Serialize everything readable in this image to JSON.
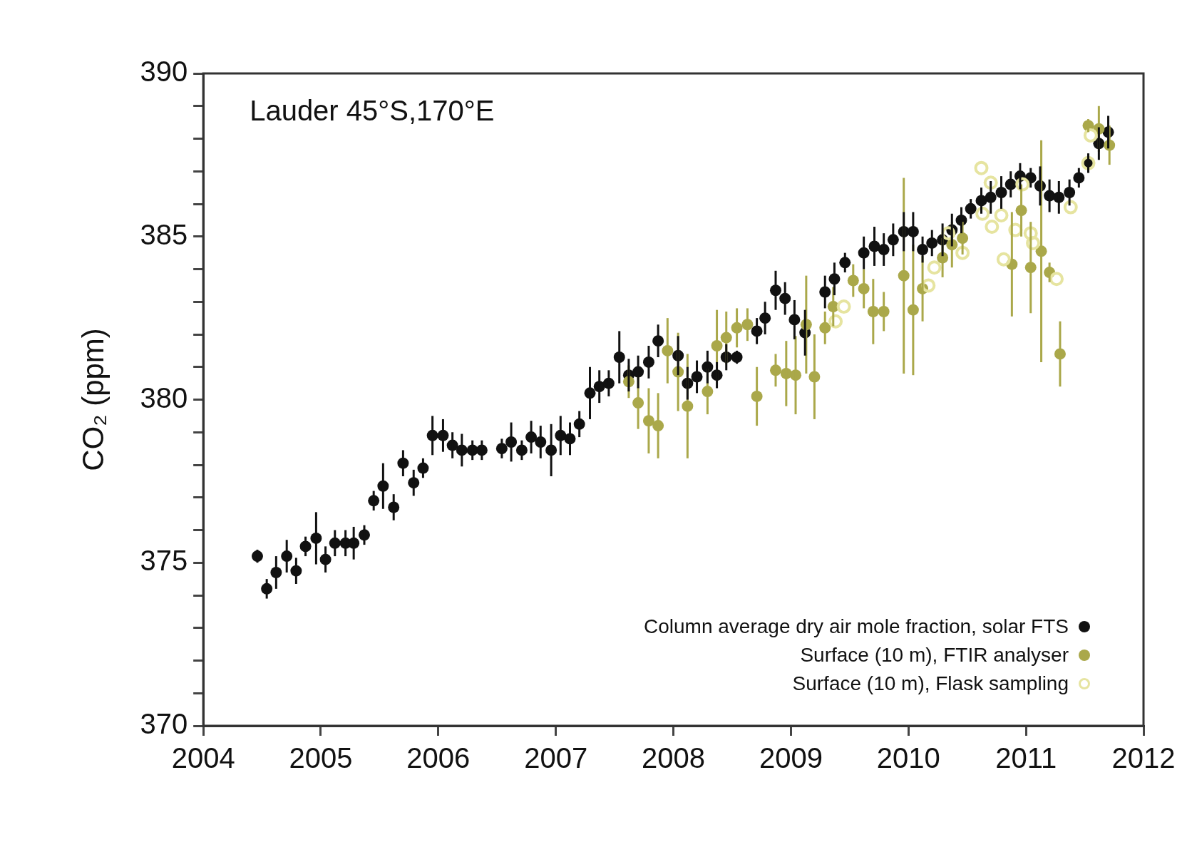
{
  "chart_data": {
    "type": "scatter",
    "ylabel": "CO₂ (ppm)",
    "annotations": [
      "Lauder 45°S,170°E"
    ],
    "xlim": [
      2004,
      2012
    ],
    "xticks": [
      2004,
      2005,
      2006,
      2007,
      2008,
      2009,
      2010,
      2011,
      2012
    ],
    "ylim": [
      370,
      390
    ],
    "yticks": [
      370,
      {
        "value": 371,
        "label": null
      },
      {
        "value": 372,
        "label": null
      },
      {
        "value": 373,
        "label": null
      },
      {
        "value": 374,
        "label": null
      },
      375,
      {
        "value": 376,
        "label": null
      },
      {
        "value": 377,
        "label": null
      },
      {
        "value": 378,
        "label": null
      },
      {
        "value": 379,
        "label": null
      },
      380,
      {
        "value": 381,
        "label": null
      },
      {
        "value": 382,
        "label": null
      },
      {
        "value": 383,
        "label": null
      },
      {
        "value": 384,
        "label": null
      },
      385,
      {
        "value": 386,
        "label": null
      },
      {
        "value": 387,
        "label": null
      },
      {
        "value": 388,
        "label": null
      },
      {
        "value": 389,
        "label": null
      },
      390
    ],
    "grid": false,
    "legend": "bottom right",
    "marker": "circle",
    "series": [
      {
        "name": "Column average dry air mole fraction, solar FTS",
        "color": "#111111",
        "x": [
          2004.46,
          2004.54,
          2004.62,
          2004.71,
          2004.79,
          2004.87,
          2004.96,
          2005.04,
          2005.12,
          2005.21,
          2005.28,
          2005.37,
          2005.45,
          2005.53,
          2005.62,
          2005.7,
          2005.79,
          2005.87,
          2005.95,
          2006.04,
          2006.12,
          2006.2,
          2006.29,
          2006.37,
          2006.54,
          2006.62,
          2006.71,
          2006.79,
          2006.87,
          2006.96,
          2007.04,
          2007.12,
          2007.2,
          2007.29,
          2007.37,
          2007.45,
          2007.54,
          2007.62,
          2007.7,
          2007.79,
          2007.87,
          2008.04,
          2008.12,
          2008.2,
          2008.29,
          2008.37,
          2008.45,
          2008.54,
          2008.71,
          2008.78,
          2008.87,
          2008.95,
          2009.03,
          2009.12,
          2009.29,
          2009.37,
          2009.46,
          2009.62,
          2009.71,
          2009.79,
          2009.87,
          2009.96,
          2010.04,
          2010.12,
          2010.2,
          2010.29,
          2010.37,
          2010.45,
          2010.53,
          2010.62,
          2010.7,
          2010.79,
          2010.87,
          2010.95,
          2011.04,
          2011.12,
          2011.2,
          2011.28,
          2011.37,
          2011.45,
          2011.53,
          2011.62,
          2011.7
        ],
        "values": [
          375.2,
          374.2,
          374.7,
          375.2,
          374.75,
          375.5,
          375.75,
          375.1,
          375.6,
          375.6,
          375.6,
          375.85,
          376.9,
          377.35,
          376.7,
          378.05,
          377.45,
          377.9,
          378.9,
          378.9,
          378.6,
          378.45,
          378.45,
          378.45,
          378.5,
          378.7,
          378.45,
          378.85,
          378.7,
          378.45,
          378.9,
          378.8,
          379.25,
          380.2,
          380.4,
          380.5,
          381.3,
          380.75,
          380.85,
          381.15,
          381.8,
          381.35,
          380.5,
          380.7,
          381.0,
          380.75,
          381.3,
          381.3,
          382.1,
          382.5,
          383.35,
          383.1,
          382.45,
          382.05,
          383.3,
          383.7,
          384.2,
          384.5,
          384.7,
          384.6,
          384.9,
          385.15,
          385.15,
          384.6,
          384.8,
          384.9,
          385.2,
          385.5,
          385.85,
          386.1,
          386.2,
          386.35,
          386.6,
          386.85,
          386.8,
          386.55,
          386.25,
          386.2,
          386.35,
          386.8,
          387.25,
          387.85,
          388.2
        ],
        "errors": [
          0.2,
          0.3,
          0.5,
          0.5,
          0.4,
          0.3,
          0.8,
          0.4,
          0.4,
          0.4,
          0.5,
          0.3,
          0.3,
          0.7,
          0.4,
          0.4,
          0.4,
          0.3,
          0.6,
          0.5,
          0.4,
          0.5,
          0.3,
          0.3,
          0.3,
          0.6,
          0.3,
          0.5,
          0.5,
          0.8,
          0.6,
          0.5,
          0.4,
          0.8,
          0.5,
          0.4,
          0.8,
          0.5,
          0.5,
          0.5,
          0.5,
          0.6,
          0.5,
          0.5,
          0.5,
          0.4,
          0.4,
          0.2,
          0.4,
          0.5,
          0.6,
          0.5,
          0.6,
          0.7,
          0.5,
          0.5,
          0.3,
          0.5,
          0.6,
          0.5,
          0.5,
          0.6,
          0.6,
          0.4,
          0.4,
          0.5,
          0.5,
          0.4,
          0.3,
          0.4,
          0.5,
          0.5,
          0.4,
          0.4,
          0.3,
          0.6,
          0.5,
          0.5,
          0.4,
          0.3,
          0.3,
          0.5,
          0.5
        ]
      },
      {
        "name": "Surface (10 m), FTIR analyser",
        "color": "#aaa84a",
        "x": [
          2007.62,
          2007.7,
          2007.79,
          2007.87,
          2007.95,
          2008.04,
          2008.12,
          2008.29,
          2008.37,
          2008.45,
          2008.54,
          2008.63,
          2008.71,
          2008.87,
          2008.96,
          2009.04,
          2009.13,
          2009.2,
          2009.29,
          2009.36,
          2009.53,
          2009.62,
          2009.7,
          2009.79,
          2009.96,
          2010.04,
          2010.12,
          2010.29,
          2010.37,
          2010.46,
          2010.88,
          2010.96,
          2011.04,
          2011.13,
          2011.2,
          2011.29,
          2011.53,
          2011.62,
          2011.71
        ],
        "values": [
          380.55,
          379.9,
          379.35,
          379.2,
          381.5,
          380.85,
          379.8,
          380.25,
          381.65,
          381.9,
          382.2,
          382.3,
          380.1,
          380.9,
          380.8,
          380.75,
          382.3,
          380.7,
          382.2,
          382.85,
          383.65,
          383.4,
          382.7,
          382.7,
          383.8,
          382.75,
          383.4,
          384.35,
          384.75,
          384.95,
          384.15,
          385.8,
          384.05,
          384.55,
          383.9,
          381.4,
          388.4,
          388.3,
          387.8
        ],
        "errors": [
          0.5,
          0.8,
          1.0,
          1.0,
          1.0,
          1.2,
          1.6,
          0.7,
          1.1,
          0.8,
          0.6,
          0.5,
          0.9,
          0.5,
          1.0,
          1.2,
          1.5,
          1.3,
          0.5,
          0.6,
          0.5,
          0.6,
          1.0,
          0.6,
          3.0,
          2.0,
          1.0,
          0.6,
          0.7,
          0.5,
          1.6,
          0.8,
          1.4,
          3.4,
          0.3,
          1.0,
          0.2,
          0.7,
          0.6
        ]
      },
      {
        "name": "Surface (10 m), Flask sampling",
        "color": "#e6e4a0",
        "x": [
          2009.38,
          2009.45,
          2010.17,
          2010.22,
          2010.34,
          2010.46,
          2010.62,
          2010.63,
          2010.7,
          2010.71,
          2010.79,
          2010.81,
          2010.91,
          2010.97,
          2011.04,
          2011.06,
          2011.26,
          2011.38,
          2011.53,
          2011.55
        ],
        "values": [
          382.4,
          382.85,
          383.5,
          384.05,
          385.1,
          384.5,
          387.1,
          385.7,
          386.65,
          385.3,
          385.65,
          384.3,
          385.2,
          386.6,
          385.1,
          384.8,
          383.7,
          385.9,
          387.25,
          388.1
        ]
      }
    ]
  }
}
